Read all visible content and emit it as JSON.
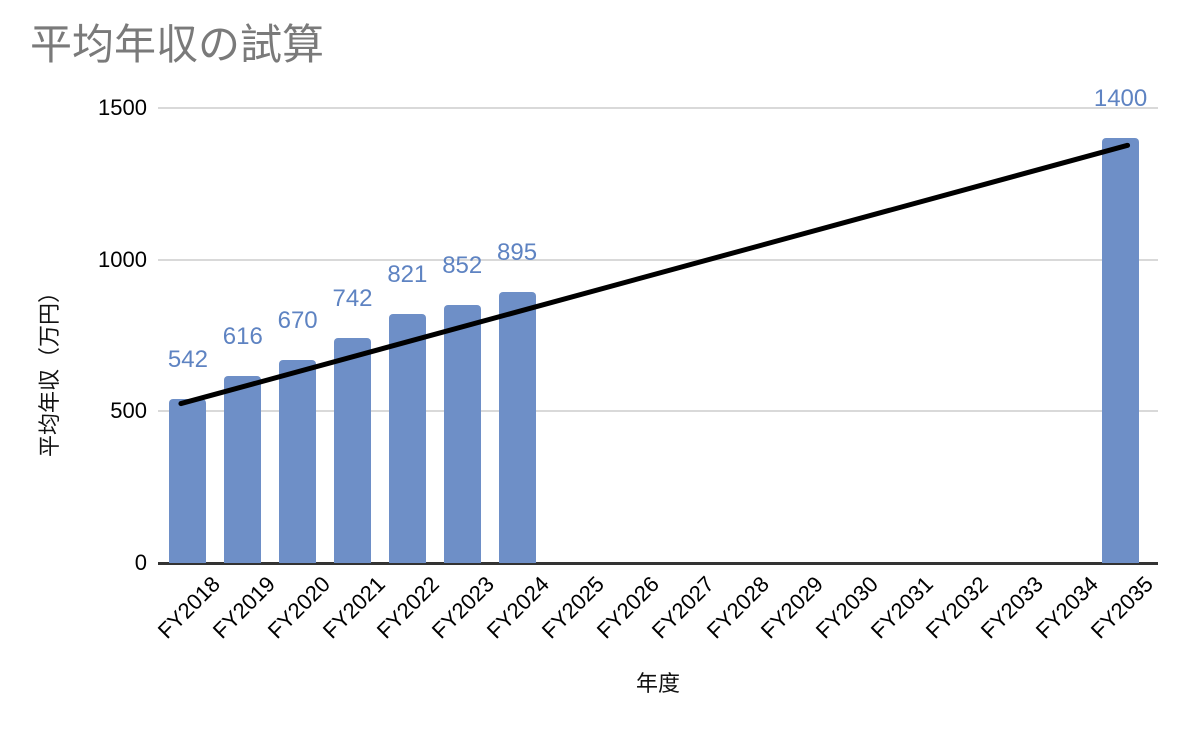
{
  "chart_data": {
    "type": "bar",
    "title": "平均年収の試算",
    "xlabel": "年度",
    "ylabel": "平均年収（万円）",
    "categories": [
      "FY2018",
      "FY2019",
      "FY2020",
      "FY2021",
      "FY2022",
      "FY2023",
      "FY2024",
      "FY2025",
      "FY2026",
      "FY2027",
      "FY2028",
      "FY2029",
      "FY2030",
      "FY2031",
      "FY2032",
      "FY2033",
      "FY2034",
      "FY2035"
    ],
    "series": [
      {
        "name": "平均年収",
        "values": [
          542,
          616,
          670,
          742,
          821,
          852,
          895,
          null,
          null,
          null,
          null,
          null,
          null,
          null,
          null,
          null,
          null,
          1400
        ]
      }
    ],
    "data_labels": [
      542,
      616,
      670,
      742,
      821,
      852,
      895,
      1400
    ],
    "trend_line": {
      "start_category": "FY2018",
      "start_value": 542,
      "end_category": "FY2035",
      "end_value": 1400,
      "color": "#000000"
    },
    "ylim": [
      0,
      1500
    ],
    "yticks": [
      0,
      500,
      1000,
      1500
    ],
    "grid": true,
    "legend": "none",
    "colors": {
      "bar": "#6e8fc7",
      "data_label": "#5e83c2",
      "title_text": "#7a7a7a",
      "axis_text": "#000000",
      "gridline": "#d9d9d9",
      "axis_line": "#333333",
      "background": "#ffffff"
    }
  }
}
